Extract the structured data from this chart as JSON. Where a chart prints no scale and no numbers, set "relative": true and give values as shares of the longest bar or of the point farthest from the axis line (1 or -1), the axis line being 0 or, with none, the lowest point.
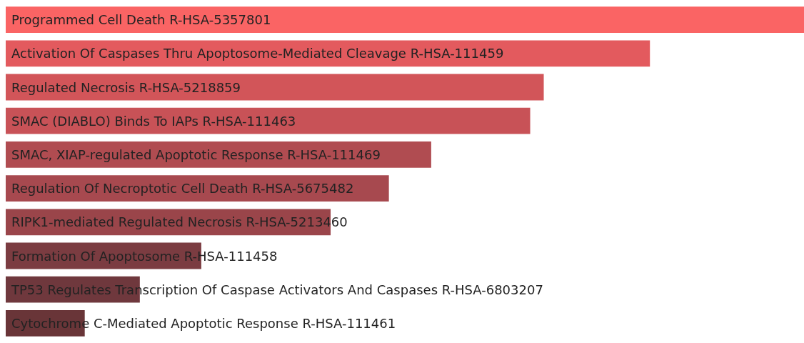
{
  "chart_data": {
    "type": "bar",
    "orientation": "horizontal",
    "relative": true,
    "categories": [
      "Programmed Cell Death R-HSA-5357801",
      "Activation Of Caspases Thru Apoptosome-Mediated Cleavage R-HSA-111459",
      "Regulated Necrosis R-HSA-5218859",
      "SMAC (DIABLO) Binds To IAPs R-HSA-111463",
      "SMAC, XIAP-regulated Apoptotic Response R-HSA-111469",
      "Regulation Of Necroptotic Cell Death R-HSA-5675482",
      "RIPK1-mediated Regulated Necrosis R-HSA-5213460",
      "Formation Of Apoptosome R-HSA-111458",
      "TP53 Regulates Transcription Of Caspase Activators And Caspases R-HSA-6803207",
      "Cytochrome C-Mediated Apoptotic Response R-HSA-111461"
    ],
    "values": [
      1,
      0.807,
      0.674,
      0.657,
      0.533,
      0.48,
      0.407,
      0.245,
      0.168,
      0.099
    ],
    "colors": [
      "#fa6464",
      "#e35a5e",
      "#d25559",
      "#c85257",
      "#b04c51",
      "#a7494f",
      "#9a454a",
      "#7b3c41",
      "#6f383d",
      "#693538"
    ]
  }
}
